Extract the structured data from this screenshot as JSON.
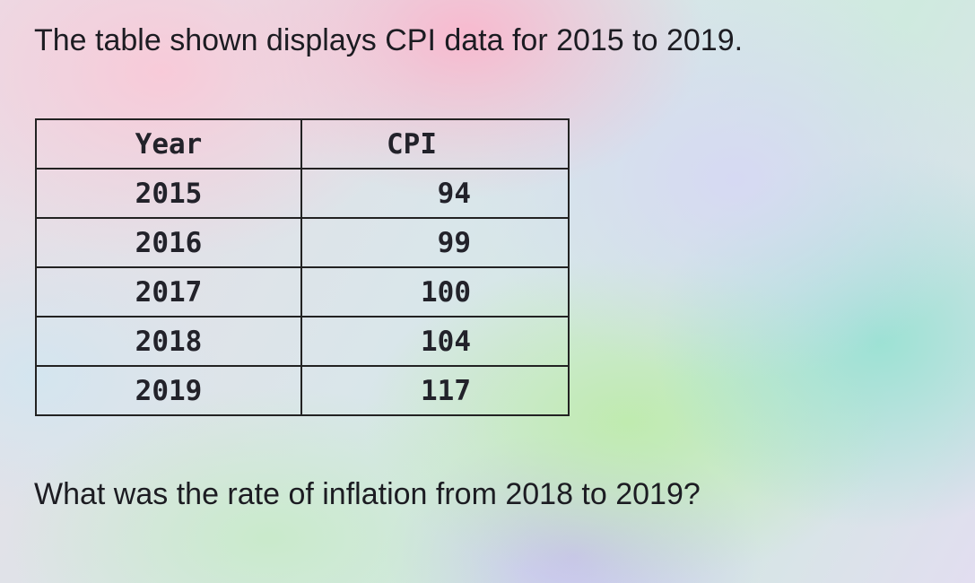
{
  "question": {
    "intro": "The table shown displays CPI data for 2015 to 2019.",
    "prompt": "What was the rate of inflation from 2018 to 2019?"
  },
  "table": {
    "header": [
      "Year",
      "CPI"
    ],
    "rows": [
      [
        2015,
        94
      ],
      [
        2016,
        99
      ],
      [
        2017,
        100
      ],
      [
        2018,
        104
      ],
      [
        2019,
        117
      ]
    ]
  }
}
